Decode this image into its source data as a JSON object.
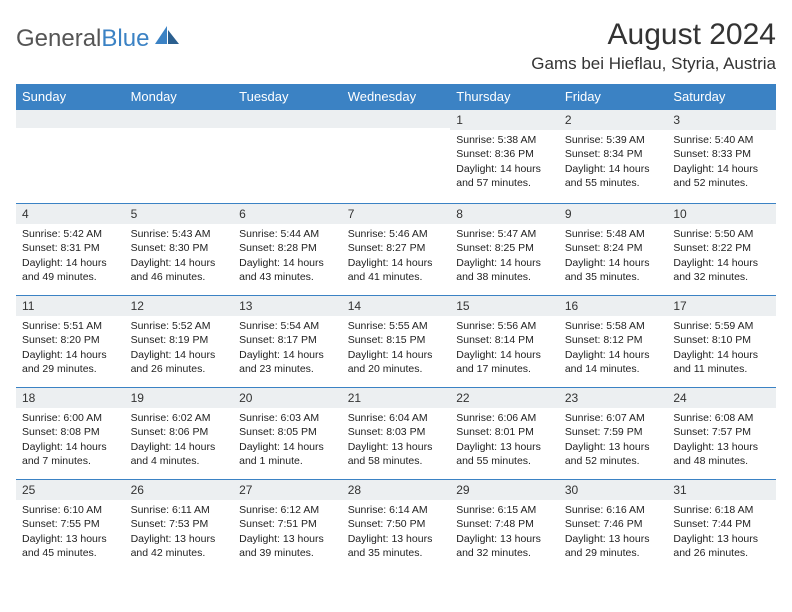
{
  "brand": {
    "part1": "General",
    "part2": "Blue"
  },
  "title": "August 2024",
  "location": "Gams bei Hieflau, Styria, Austria",
  "colors": {
    "header_bg": "#3b82c4",
    "header_text": "#ffffff",
    "daynum_bg": "#eceff1",
    "border": "#3b82c4",
    "text": "#222222",
    "page_bg": "#ffffff"
  },
  "weekdays": [
    "Sunday",
    "Monday",
    "Tuesday",
    "Wednesday",
    "Thursday",
    "Friday",
    "Saturday"
  ],
  "grid": {
    "first_weekday_index": 4,
    "days_in_month": 31
  },
  "days": {
    "1": {
      "sunrise": "5:38 AM",
      "sunset": "8:36 PM",
      "daylight": "14 hours and 57 minutes."
    },
    "2": {
      "sunrise": "5:39 AM",
      "sunset": "8:34 PM",
      "daylight": "14 hours and 55 minutes."
    },
    "3": {
      "sunrise": "5:40 AM",
      "sunset": "8:33 PM",
      "daylight": "14 hours and 52 minutes."
    },
    "4": {
      "sunrise": "5:42 AM",
      "sunset": "8:31 PM",
      "daylight": "14 hours and 49 minutes."
    },
    "5": {
      "sunrise": "5:43 AM",
      "sunset": "8:30 PM",
      "daylight": "14 hours and 46 minutes."
    },
    "6": {
      "sunrise": "5:44 AM",
      "sunset": "8:28 PM",
      "daylight": "14 hours and 43 minutes."
    },
    "7": {
      "sunrise": "5:46 AM",
      "sunset": "8:27 PM",
      "daylight": "14 hours and 41 minutes."
    },
    "8": {
      "sunrise": "5:47 AM",
      "sunset": "8:25 PM",
      "daylight": "14 hours and 38 minutes."
    },
    "9": {
      "sunrise": "5:48 AM",
      "sunset": "8:24 PM",
      "daylight": "14 hours and 35 minutes."
    },
    "10": {
      "sunrise": "5:50 AM",
      "sunset": "8:22 PM",
      "daylight": "14 hours and 32 minutes."
    },
    "11": {
      "sunrise": "5:51 AM",
      "sunset": "8:20 PM",
      "daylight": "14 hours and 29 minutes."
    },
    "12": {
      "sunrise": "5:52 AM",
      "sunset": "8:19 PM",
      "daylight": "14 hours and 26 minutes."
    },
    "13": {
      "sunrise": "5:54 AM",
      "sunset": "8:17 PM",
      "daylight": "14 hours and 23 minutes."
    },
    "14": {
      "sunrise": "5:55 AM",
      "sunset": "8:15 PM",
      "daylight": "14 hours and 20 minutes."
    },
    "15": {
      "sunrise": "5:56 AM",
      "sunset": "8:14 PM",
      "daylight": "14 hours and 17 minutes."
    },
    "16": {
      "sunrise": "5:58 AM",
      "sunset": "8:12 PM",
      "daylight": "14 hours and 14 minutes."
    },
    "17": {
      "sunrise": "5:59 AM",
      "sunset": "8:10 PM",
      "daylight": "14 hours and 11 minutes."
    },
    "18": {
      "sunrise": "6:00 AM",
      "sunset": "8:08 PM",
      "daylight": "14 hours and 7 minutes."
    },
    "19": {
      "sunrise": "6:02 AM",
      "sunset": "8:06 PM",
      "daylight": "14 hours and 4 minutes."
    },
    "20": {
      "sunrise": "6:03 AM",
      "sunset": "8:05 PM",
      "daylight": "14 hours and 1 minute."
    },
    "21": {
      "sunrise": "6:04 AM",
      "sunset": "8:03 PM",
      "daylight": "13 hours and 58 minutes."
    },
    "22": {
      "sunrise": "6:06 AM",
      "sunset": "8:01 PM",
      "daylight": "13 hours and 55 minutes."
    },
    "23": {
      "sunrise": "6:07 AM",
      "sunset": "7:59 PM",
      "daylight": "13 hours and 52 minutes."
    },
    "24": {
      "sunrise": "6:08 AM",
      "sunset": "7:57 PM",
      "daylight": "13 hours and 48 minutes."
    },
    "25": {
      "sunrise": "6:10 AM",
      "sunset": "7:55 PM",
      "daylight": "13 hours and 45 minutes."
    },
    "26": {
      "sunrise": "6:11 AM",
      "sunset": "7:53 PM",
      "daylight": "13 hours and 42 minutes."
    },
    "27": {
      "sunrise": "6:12 AM",
      "sunset": "7:51 PM",
      "daylight": "13 hours and 39 minutes."
    },
    "28": {
      "sunrise": "6:14 AM",
      "sunset": "7:50 PM",
      "daylight": "13 hours and 35 minutes."
    },
    "29": {
      "sunrise": "6:15 AM",
      "sunset": "7:48 PM",
      "daylight": "13 hours and 32 minutes."
    },
    "30": {
      "sunrise": "6:16 AM",
      "sunset": "7:46 PM",
      "daylight": "13 hours and 29 minutes."
    },
    "31": {
      "sunrise": "6:18 AM",
      "sunset": "7:44 PM",
      "daylight": "13 hours and 26 minutes."
    }
  },
  "labels": {
    "sunrise": "Sunrise: ",
    "sunset": "Sunset: ",
    "daylight": "Daylight: "
  }
}
